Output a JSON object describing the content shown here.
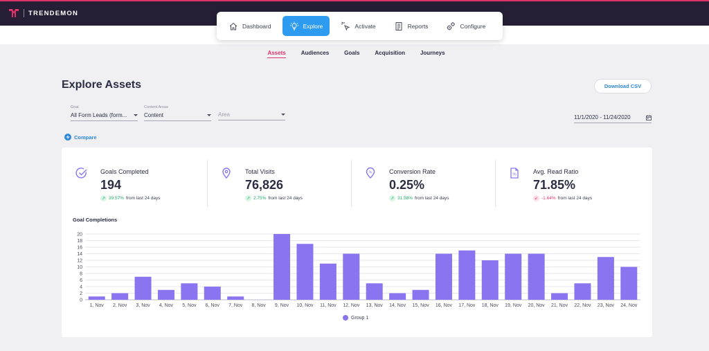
{
  "app": {
    "logo_text": "TRENDEMON"
  },
  "nav": {
    "items": [
      {
        "label": "Dashboard",
        "icon": "home-icon",
        "active": false
      },
      {
        "label": "Explore",
        "icon": "lightbulb-icon",
        "active": true
      },
      {
        "label": "Activate",
        "icon": "cursor-click-icon",
        "active": false
      },
      {
        "label": "Reports",
        "icon": "report-icon",
        "active": false
      },
      {
        "label": "Configure",
        "icon": "gears-icon",
        "active": false
      }
    ]
  },
  "subnav": {
    "items": [
      {
        "label": "Assets",
        "active": true
      },
      {
        "label": "Audiences",
        "active": false
      },
      {
        "label": "Goals",
        "active": false
      },
      {
        "label": "Acquisition",
        "active": false
      },
      {
        "label": "Journeys",
        "active": false
      }
    ]
  },
  "page": {
    "title": "Explore Assets",
    "download_label": "Download CSV"
  },
  "filters": {
    "goal": {
      "label": "Goal",
      "value": "All Form Leads (form..."
    },
    "content_areas": {
      "label": "Content Areas",
      "value": "Content"
    },
    "area": {
      "placeholder": "Area"
    },
    "date_range": "11/1/2020 - 11/24/2020"
  },
  "compare_label": "Compare",
  "kpis": [
    {
      "title": "Goals Completed",
      "value": "194",
      "change": "39.57%",
      "direction": "up",
      "suffix": "from last 24 days",
      "icon": "check-circle-icon"
    },
    {
      "title": "Total Visits",
      "value": "76,826",
      "change": "2.75%",
      "direction": "up",
      "suffix": "from last 24 days",
      "icon": "location-pin-icon"
    },
    {
      "title": "Conversion Rate",
      "value": "0.25%",
      "change": "31.58%",
      "direction": "up",
      "suffix": "from last 24 days",
      "icon": "percent-pin-icon"
    },
    {
      "title": "Avg. Read Ratio",
      "value": "71.85%",
      "change": "-1.64%",
      "direction": "down",
      "suffix": "from last 24 days",
      "icon": "percent-doc-icon"
    }
  ],
  "colors": {
    "accent": "#e0336a",
    "primary": "#2d9bf0",
    "bar": "#8b74f0",
    "topbar": "#251e35"
  },
  "chart_data": {
    "type": "bar",
    "title": "Goal Completions",
    "categories": [
      "1, Nov",
      "2, Nov",
      "3, Nov",
      "4, Nov",
      "5, Nov",
      "6, Nov",
      "7, Nov",
      "8, Nov",
      "9, Nov",
      "10, Nov",
      "11, Nov",
      "12, Nov",
      "13, Nov",
      "14, Nov",
      "15, Nov",
      "16, Nov",
      "17, Nov",
      "18, Nov",
      "19, Nov",
      "20, Nov",
      "21, Nov",
      "22, Nov",
      "23, Nov",
      "24, Nov"
    ],
    "series": [
      {
        "name": "Group 1",
        "values": [
          1,
          2,
          7,
          3,
          5,
          4,
          1,
          0,
          20,
          17,
          11,
          14,
          5,
          2,
          3,
          14,
          15,
          12,
          14,
          14,
          2,
          5,
          13,
          10
        ]
      }
    ],
    "y_ticks": [
      0,
      2,
      4,
      6,
      8,
      10,
      12,
      14,
      16,
      18,
      20
    ],
    "ylim": [
      0,
      20
    ],
    "grid": true,
    "legend": "bottom-center"
  }
}
